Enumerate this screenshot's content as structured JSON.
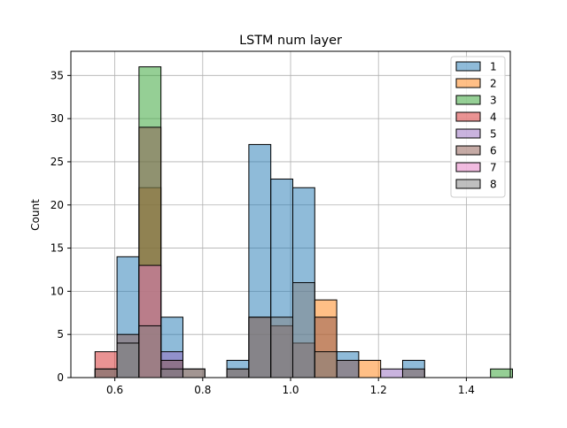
{
  "chart_data": {
    "type": "histogram",
    "title": "LSTM num layer",
    "xlabel": "",
    "ylabel": "Count",
    "xlim": [
      0.5,
      1.5
    ],
    "ylim": [
      0,
      37.8
    ],
    "x_ticks": [
      0.6,
      0.8,
      1.0,
      1.2,
      1.4
    ],
    "x_tick_labels": [
      "0.6",
      "0.8",
      "1.0",
      "1.2",
      "1.4"
    ],
    "y_ticks": [
      0,
      5,
      10,
      15,
      20,
      25,
      30,
      35
    ],
    "y_tick_labels": [
      "0",
      "5",
      "10",
      "15",
      "20",
      "25",
      "30",
      "35"
    ],
    "grid": true,
    "legend_position": "top-right",
    "bin_edges": [
      0.555,
      0.605,
      0.655,
      0.705,
      0.755,
      0.805,
      0.855,
      0.905,
      0.955,
      1.005,
      1.055,
      1.105,
      1.155,
      1.205,
      1.255,
      1.305,
      1.355,
      1.405,
      1.455,
      1.505
    ],
    "series": [
      {
        "name": "1",
        "color": "#1f77b4",
        "values": [
          0,
          14,
          0,
          7,
          0,
          0,
          2,
          27,
          23,
          22,
          0,
          3,
          0,
          0,
          2,
          0,
          0,
          0,
          0
        ]
      },
      {
        "name": "2",
        "color": "#ff7f0e",
        "values": [
          0,
          0,
          22,
          0,
          0,
          0,
          0,
          0,
          0,
          0,
          9,
          0,
          2,
          0,
          0,
          0,
          0,
          0,
          0
        ]
      },
      {
        "name": "3",
        "color": "#2ca02c",
        "values": [
          0,
          0,
          36,
          0,
          0,
          0,
          0,
          0,
          0,
          0,
          0,
          0,
          0,
          0,
          0,
          0,
          0,
          0,
          1
        ]
      },
      {
        "name": "4",
        "color": "#d62728",
        "values": [
          3,
          0,
          0,
          0,
          0,
          0,
          0,
          0,
          0,
          0,
          0,
          0,
          0,
          0,
          0,
          0,
          0,
          0,
          0
        ]
      },
      {
        "name": "5",
        "color": "#9467bd",
        "values": [
          0,
          0,
          0,
          3,
          0,
          0,
          0,
          0,
          0,
          0,
          0,
          0,
          0,
          1,
          0,
          0,
          0,
          0,
          0
        ]
      },
      {
        "name": "6",
        "color": "#8c564b",
        "values": [
          1,
          5,
          29,
          2,
          1,
          0,
          1,
          7,
          6,
          4,
          7,
          2,
          0,
          0,
          1,
          0,
          0,
          0,
          0
        ]
      },
      {
        "name": "7",
        "color": "#e377c2",
        "values": [
          0,
          0,
          13,
          0,
          0,
          0,
          0,
          0,
          0,
          0,
          0,
          0,
          0,
          0,
          0,
          0,
          0,
          0,
          0
        ]
      },
      {
        "name": "8",
        "color": "#7f7f7f",
        "values": [
          1,
          4,
          6,
          1,
          1,
          0,
          1,
          7,
          7,
          11,
          3,
          0,
          0,
          0,
          0,
          0,
          0,
          0,
          0
        ]
      }
    ]
  }
}
